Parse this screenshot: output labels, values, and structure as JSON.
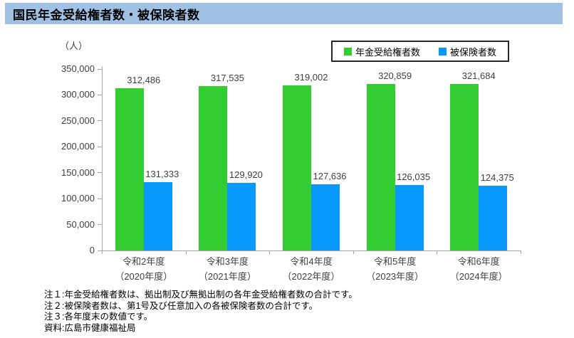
{
  "header": {
    "title": "国民年金受給権者数・被保険者数"
  },
  "axis": {
    "unit_label": "（人）"
  },
  "colors": {
    "title_bar_bg": "#9FC2E4",
    "series_green": "#33CC33",
    "series_blue": "#0998FC",
    "axis_line": "#A6A6A6",
    "tick_text": "#404040"
  },
  "legend": {
    "items": [
      {
        "label": "年金受給権者数",
        "color": "#33CC33"
      },
      {
        "label": "被保険者数",
        "color": "#0998FC"
      }
    ]
  },
  "notes": {
    "lines": [
      "注１:年金受給権者数は、拠出制及び無拠出制の各年金受給権者数の合計です。",
      "注２:被保険者数は、第1号及び任意加入の各被保険者数の合計です。",
      "注３:各年度末の数値です。",
      "資料:広島市健康福祉局"
    ]
  },
  "chart_data": {
    "type": "bar",
    "title": "国民年金受給権者数・被保険者数",
    "categories": [
      "令和2年度",
      "令和3年度",
      "令和4年度",
      "令和5年度",
      "令和6年度"
    ],
    "categories_sub": [
      "（2020年度）",
      "（2021年度）",
      "（2022年度）",
      "（2023年度）",
      "（2024年度）"
    ],
    "series": [
      {
        "name": "年金受給権者数",
        "color": "#33CC33",
        "values": [
          312486,
          317535,
          319002,
          320859,
          321684
        ]
      },
      {
        "name": "被保険者数",
        "color": "#0998FC",
        "values": [
          131333,
          129920,
          127636,
          126035,
          124375
        ]
      }
    ],
    "xlabel": "",
    "ylabel": "（人）",
    "ylim": [
      0,
      350000
    ],
    "ytick_step": 50000,
    "grid": false,
    "legend_position": "top-right",
    "data_labels": true
  }
}
